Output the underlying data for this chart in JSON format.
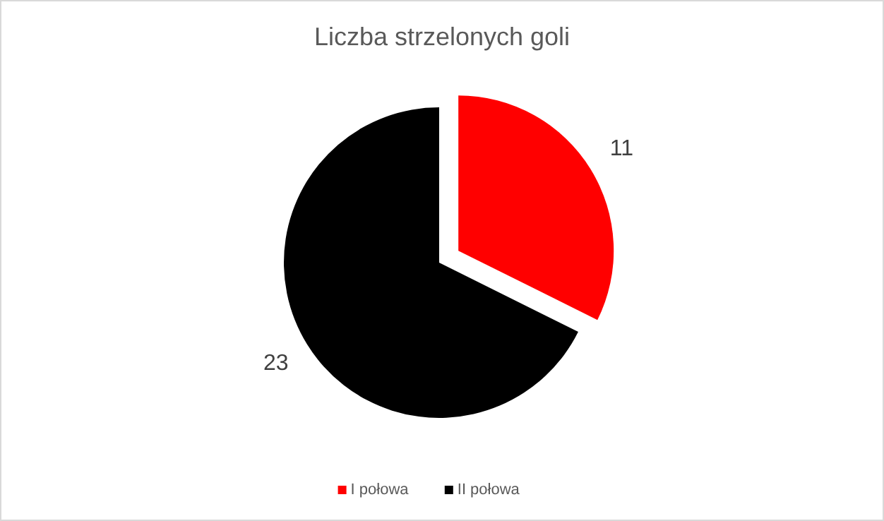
{
  "chart_data": {
    "type": "pie",
    "title": "Liczba strzelonych goli",
    "categories": [
      "I połowa",
      "II połowa"
    ],
    "values": [
      11,
      23
    ],
    "colors": [
      "#ff0000",
      "#000000"
    ],
    "data_labels": true,
    "legend": "bottom"
  }
}
